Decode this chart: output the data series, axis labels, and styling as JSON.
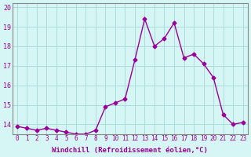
{
  "hours": [
    0,
    1,
    2,
    3,
    4,
    5,
    6,
    7,
    8,
    9,
    10,
    11,
    12,
    13,
    14,
    15,
    16,
    17,
    18,
    19,
    20,
    21,
    22,
    23
  ],
  "values": [
    13.9,
    13.8,
    13.7,
    13.8,
    13.7,
    13.6,
    13.5,
    13.5,
    13.7,
    14.9,
    15.1,
    15.3,
    17.3,
    19.4,
    18.0,
    18.4,
    19.2,
    17.4,
    17.6,
    17.1,
    16.4,
    14.5,
    14.0,
    14.1
  ],
  "ylim": [
    13.5,
    20.2
  ],
  "yticks": [
    14,
    15,
    16,
    17,
    18,
    19,
    20
  ],
  "xticks": [
    0,
    1,
    2,
    3,
    4,
    5,
    6,
    7,
    8,
    9,
    10,
    11,
    12,
    13,
    14,
    15,
    16,
    17,
    18,
    19,
    20,
    21,
    22,
    23
  ],
  "line_color": "#990099",
  "bg_color": "#d6f5f5",
  "grid_color": "#aadddd",
  "xlabel": "Windchill (Refroidissement éolien,°C)",
  "title": "",
  "marker": "D",
  "marker_size": 2.5,
  "linewidth": 1.0
}
